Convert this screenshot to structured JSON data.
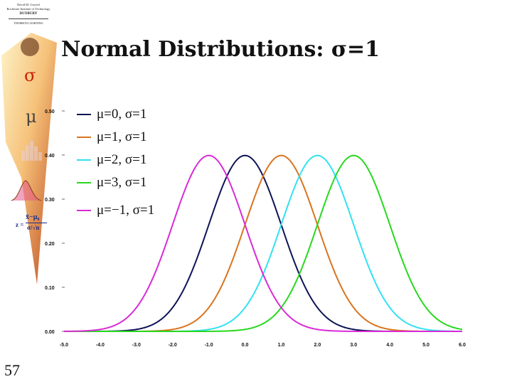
{
  "slide": {
    "title": "Normal Distributions:  σ=1",
    "slide_number": "57",
    "sidebar_symbols": {
      "sigma": "σ",
      "mu": "μ"
    },
    "credit": {
      "line1": "David M. Gryziel",
      "line2": "Rochester Institute of Technology",
      "publisher": "DUXBURY",
      "publisher_sub": "THOMSON LEARNING"
    },
    "formula": {
      "z": "z =",
      "numerator": "x̄−μ₀",
      "denominator": "σ/√n"
    },
    "colors": {
      "banner_light": "#fbe8b0",
      "banner_dark": "#c0501e"
    }
  },
  "chart_data": {
    "type": "line",
    "title": "Normal Distributions:  σ=1",
    "xlabel": "",
    "ylabel": "",
    "xlim": [
      -5.0,
      6.0
    ],
    "ylim": [
      0.0,
      0.5
    ],
    "x_ticks": [
      "-5.0",
      "-4.0",
      "-3.0",
      "-2.0",
      "-1.0",
      "0.0",
      "1.0",
      "2.0",
      "3.0",
      "4.0",
      "5.0",
      "6.0"
    ],
    "y_ticks": [
      "0.00",
      "0.10",
      "0.20",
      "0.30",
      "0.40",
      "0.50"
    ],
    "grid": false,
    "legend_position": "top-left",
    "series": [
      {
        "name": "μ=0, σ=1",
        "mu": 0,
        "sigma": 1,
        "color": "#0d1457"
      },
      {
        "name": "μ=1, σ=1",
        "mu": 1,
        "sigma": 1,
        "color": "#d9741f"
      },
      {
        "name": "μ=2, σ=1",
        "mu": 2,
        "sigma": 1,
        "color": "#33e1f2"
      },
      {
        "name": "μ=3, σ=1",
        "mu": 3,
        "sigma": 1,
        "color": "#27d91e"
      },
      {
        "name": "μ=−1, σ=1",
        "mu": -1,
        "sigma": 1,
        "color": "#d82bd6"
      }
    ]
  }
}
